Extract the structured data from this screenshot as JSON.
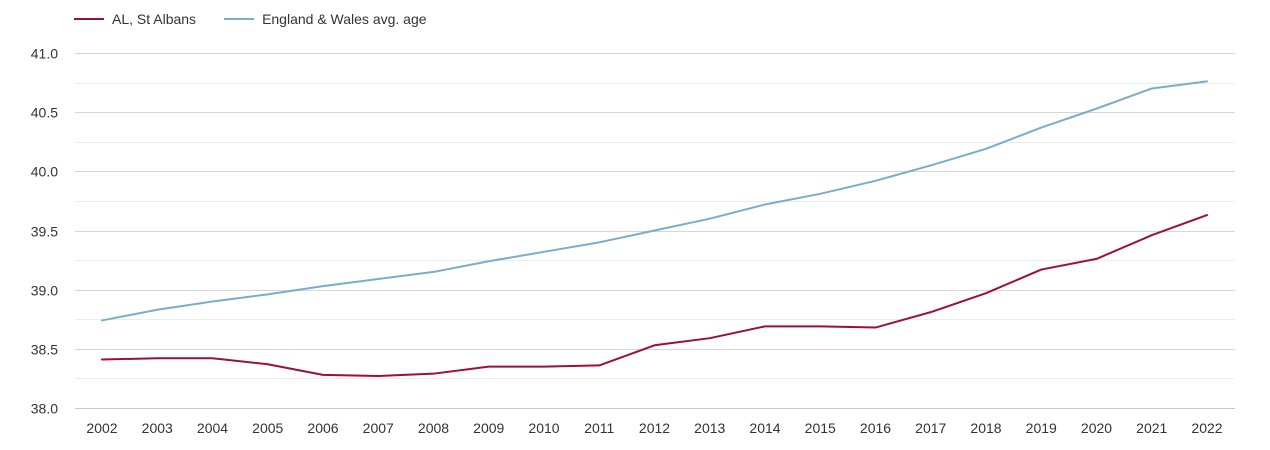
{
  "chart_data": {
    "type": "line",
    "title": "",
    "xlabel": "",
    "ylabel": "",
    "categories": [
      "2002",
      "2003",
      "2004",
      "2005",
      "2006",
      "2007",
      "2008",
      "2009",
      "2010",
      "2011",
      "2012",
      "2013",
      "2014",
      "2015",
      "2016",
      "2017",
      "2018",
      "2019",
      "2020",
      "2021",
      "2022"
    ],
    "series": [
      {
        "name": "AL, St Albans",
        "color": "#9b0f3a",
        "values": [
          38.41,
          38.42,
          38.42,
          38.37,
          38.28,
          38.27,
          38.29,
          38.35,
          38.35,
          38.36,
          38.53,
          38.59,
          38.69,
          38.69,
          38.68,
          38.81,
          38.97,
          39.17,
          39.26,
          39.46,
          39.63
        ]
      },
      {
        "name": "England & Wales avg. age",
        "color": "#7aaccc",
        "values": [
          38.74,
          38.83,
          38.9,
          38.96,
          39.03,
          39.09,
          39.15,
          39.24,
          39.32,
          39.4,
          39.5,
          39.6,
          39.72,
          39.81,
          39.92,
          40.05,
          40.19,
          40.37,
          40.53,
          40.7,
          40.76
        ]
      }
    ],
    "ylim": [
      38.0,
      41.0
    ],
    "yticks": [
      "38.0",
      "38.5",
      "39.0",
      "39.5",
      "40.0",
      "40.5",
      "41.0"
    ],
    "grid": true,
    "legend_position": "top-left"
  }
}
